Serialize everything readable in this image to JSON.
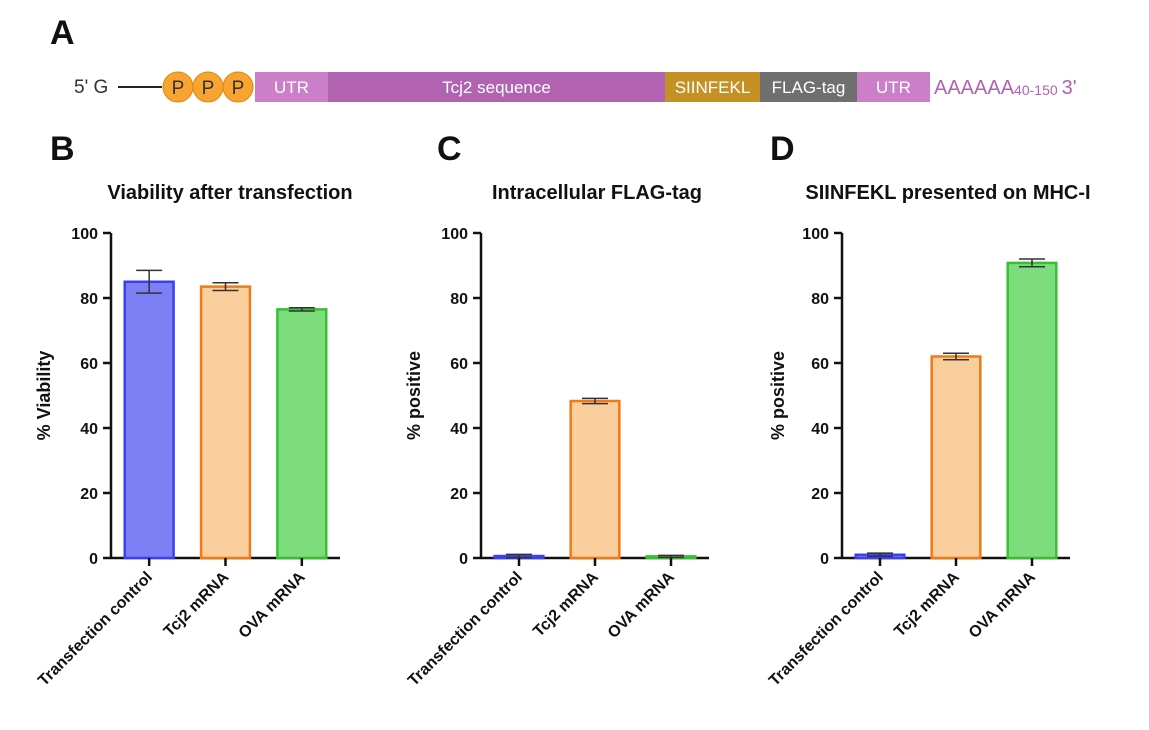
{
  "panel_a": {
    "letter": "A",
    "five_prime": "5' G",
    "cap_p": "P",
    "segments": [
      {
        "label": "UTR",
        "color": "#cc7fc9"
      },
      {
        "label": "Tcj2 sequence",
        "color": "#b162b1"
      },
      {
        "label": "SIINFEKL",
        "color": "#c49224"
      },
      {
        "label": "FLAG-tag",
        "color": "#6f6f6f"
      },
      {
        "label": "UTR",
        "color": "#cc7fc9"
      }
    ],
    "poly_a": "AAAAAA",
    "poly_a_range": "40-150",
    "three_prime": "3'",
    "poly_a_color": "#b162b1",
    "cap_color": "#f7a530"
  },
  "chart_data": [
    {
      "type": "bar",
      "letter": "B",
      "title": "Viability after transfection",
      "xlabel": "",
      "ylabel": "% Viability",
      "ylim": [
        0,
        100
      ],
      "yticks": [
        "0",
        "20",
        "40",
        "60",
        "80",
        "100"
      ],
      "categories": [
        "Transfection control",
        "Tcj2 mRNA",
        "OVA mRNA"
      ],
      "values": [
        85,
        83.5,
        76.5
      ],
      "errors": [
        3.5,
        1.2,
        0.5
      ],
      "fill_colors": [
        "#7d7ff5",
        "#fbcf9d",
        "#7ddc7b"
      ],
      "edge_colors": [
        "#3d3ff0",
        "#f07a16",
        "#38c033"
      ]
    },
    {
      "type": "bar",
      "letter": "C",
      "title": "Intracellular FLAG-tag",
      "xlabel": "",
      "ylabel": "% positive",
      "ylim": [
        0,
        100
      ],
      "yticks": [
        "0",
        "20",
        "40",
        "60",
        "80",
        "100"
      ],
      "categories": [
        "Transfection control",
        "Tcj2 mRNA",
        "OVA mRNA"
      ],
      "values": [
        0.6,
        48.3,
        0.5
      ],
      "errors": [
        0.5,
        0.8,
        0.3
      ],
      "fill_colors": [
        "#7d7ff5",
        "#fbcf9d",
        "#7ddc7b"
      ],
      "edge_colors": [
        "#3d3ff0",
        "#f07a16",
        "#38c033"
      ]
    },
    {
      "type": "bar",
      "letter": "D",
      "title": "SIINFEKL presented on MHC-I",
      "xlabel": "",
      "ylabel": "% positive",
      "ylim": [
        0,
        100
      ],
      "yticks": [
        "0",
        "20",
        "40",
        "60",
        "80",
        "100"
      ],
      "categories": [
        "Transfection control",
        "Tcj2 mRNA",
        "OVA mRNA"
      ],
      "values": [
        1,
        62,
        90.8
      ],
      "errors": [
        0.5,
        1.0,
        1.2
      ],
      "fill_colors": [
        "#7d7ff5",
        "#fbcf9d",
        "#7ddc7b"
      ],
      "edge_colors": [
        "#3d3ff0",
        "#f07a16",
        "#38c033"
      ]
    }
  ]
}
